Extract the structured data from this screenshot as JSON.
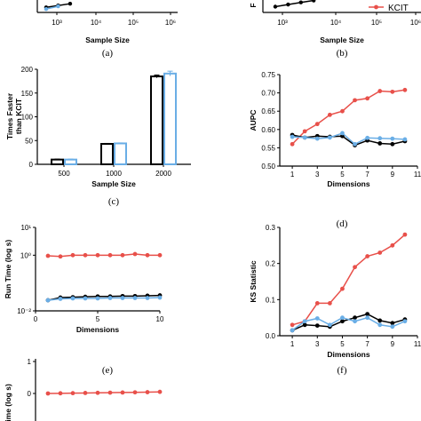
{
  "colors": {
    "red": "#e8504a",
    "black": "#000000",
    "blue": "#6aaee6"
  },
  "captions": {
    "a": "(a)",
    "b": "(b)",
    "c": "(c)",
    "d": "(d)",
    "e": "(e)",
    "f": "(f)"
  },
  "legend": {
    "kcit": "KCIT"
  },
  "chart_data": [
    {
      "id": "a",
      "type": "line",
      "xlabel": "Sample Size",
      "xscale": "log",
      "xticks": [
        "10³",
        "10⁴",
        "10⁵",
        "10⁶"
      ],
      "series": [
        {
          "color": "black",
          "x": [
            500,
            1000,
            2000
          ],
          "y": [
            0.15,
            0.5,
            1.6
          ]
        },
        {
          "color": "blue",
          "x": [
            500,
            1000
          ],
          "y": [
            0.05,
            0.3
          ]
        }
      ]
    },
    {
      "id": "b",
      "type": "line",
      "xlabel": "Sample Size",
      "ylabel_fragment": "F",
      "xscale": "log",
      "xticks": [
        "10³",
        "10⁴",
        "10⁵",
        "10⁶"
      ],
      "series": [
        {
          "color": "black",
          "x": [
            500,
            1000,
            2000,
            4000
          ],
          "y": [
            0.1,
            0.3,
            0.9,
            2.5
          ]
        }
      ]
    },
    {
      "id": "c",
      "type": "bar",
      "xlabel": "Sample Size",
      "ylabel": [
        "Times Faster",
        "than KCIT"
      ],
      "categories": [
        "500",
        "1000",
        "2000"
      ],
      "yticks": [
        "0",
        "50",
        "100",
        "150",
        "200"
      ],
      "ylim": [
        0,
        200
      ],
      "series": [
        {
          "color": "black",
          "values": [
            10,
            43,
            185
          ],
          "errors": [
            1,
            1,
            3
          ]
        },
        {
          "color": "blue",
          "values": [
            10,
            44,
            191
          ],
          "errors": [
            1,
            1,
            5
          ]
        }
      ]
    },
    {
      "id": "d",
      "type": "line",
      "xlabel": "Dimensions",
      "ylabel": "AUPC",
      "xlim": [
        0,
        11
      ],
      "ylim": [
        0.5,
        0.75
      ],
      "xticks": [
        "1",
        "3",
        "5",
        "7",
        "9",
        "11"
      ],
      "yticks": [
        "0.50",
        "0.55",
        "0.60",
        "0.65",
        "0.70",
        "0.75"
      ],
      "x": [
        1,
        2,
        3,
        4,
        5,
        6,
        7,
        8,
        9,
        10
      ],
      "series": [
        {
          "color": "red",
          "y": [
            0.56,
            0.595,
            0.615,
            0.64,
            0.65,
            0.68,
            0.685,
            0.705,
            0.703,
            0.708
          ]
        },
        {
          "color": "black",
          "y": [
            0.585,
            0.578,
            0.582,
            0.58,
            0.582,
            0.557,
            0.57,
            0.562,
            0.56,
            0.568
          ]
        },
        {
          "color": "blue",
          "y": [
            0.58,
            0.578,
            0.575,
            0.578,
            0.59,
            0.56,
            0.577,
            0.576,
            0.575,
            0.573
          ]
        }
      ]
    },
    {
      "id": "e",
      "type": "line",
      "xlabel": "Dimensions",
      "ylabel": "Run Time (log s)",
      "xlim": [
        0,
        10
      ],
      "yscale": "log",
      "ylim": [
        0.01,
        10
      ],
      "xticks": [
        "0",
        "5",
        "10"
      ],
      "yticks": [
        "10⁻²",
        "10⁰",
        "10¹"
      ],
      "x": [
        1,
        2,
        3,
        4,
        5,
        6,
        7,
        8,
        9,
        10
      ],
      "series": [
        {
          "color": "red",
          "y": [
            0.95,
            0.9,
            1.0,
            1.0,
            1.0,
            1.0,
            1.0,
            1.1,
            1.0,
            1.0
          ]
        },
        {
          "color": "black",
          "y": [
            0.024,
            0.03,
            0.031,
            0.032,
            0.033,
            0.033,
            0.034,
            0.034,
            0.035,
            0.036
          ]
        },
        {
          "color": "blue",
          "y": [
            0.024,
            0.027,
            0.028,
            0.028,
            0.028,
            0.029,
            0.029,
            0.029,
            0.029,
            0.03
          ]
        }
      ]
    },
    {
      "id": "f",
      "type": "line",
      "xlabel": "Dimensions",
      "ylabel": "KS Statistic",
      "xlim": [
        0,
        11
      ],
      "ylim": [
        0,
        0.3
      ],
      "xticks": [
        "1",
        "3",
        "5",
        "7",
        "9",
        "11"
      ],
      "yticks": [
        "0.0",
        "0.1",
        "0.2",
        "0.3"
      ],
      "x": [
        1,
        2,
        3,
        4,
        5,
        6,
        7,
        8,
        9,
        10
      ],
      "series": [
        {
          "color": "red",
          "y": [
            0.03,
            0.04,
            0.09,
            0.09,
            0.13,
            0.19,
            0.22,
            0.23,
            0.25,
            0.28
          ]
        },
        {
          "color": "black",
          "y": [
            0.015,
            0.03,
            0.028,
            0.025,
            0.04,
            0.05,
            0.06,
            0.042,
            0.035,
            0.045
          ]
        },
        {
          "color": "blue",
          "y": [
            0.015,
            0.04,
            0.048,
            0.03,
            0.05,
            0.04,
            0.05,
            0.03,
            0.025,
            0.04
          ]
        }
      ]
    },
    {
      "id": "g",
      "type": "line",
      "ylabel_fragment": "Time (log s)",
      "yticks": [
        "1",
        "0"
      ],
      "x": [
        1,
        2,
        3,
        4,
        5,
        6,
        7,
        8,
        9,
        10
      ],
      "series": [
        {
          "color": "red",
          "y": [
            0.0,
            0.005,
            0.01,
            0.015,
            0.02,
            0.025,
            0.03,
            0.035,
            0.04,
            0.05
          ]
        }
      ]
    }
  ]
}
